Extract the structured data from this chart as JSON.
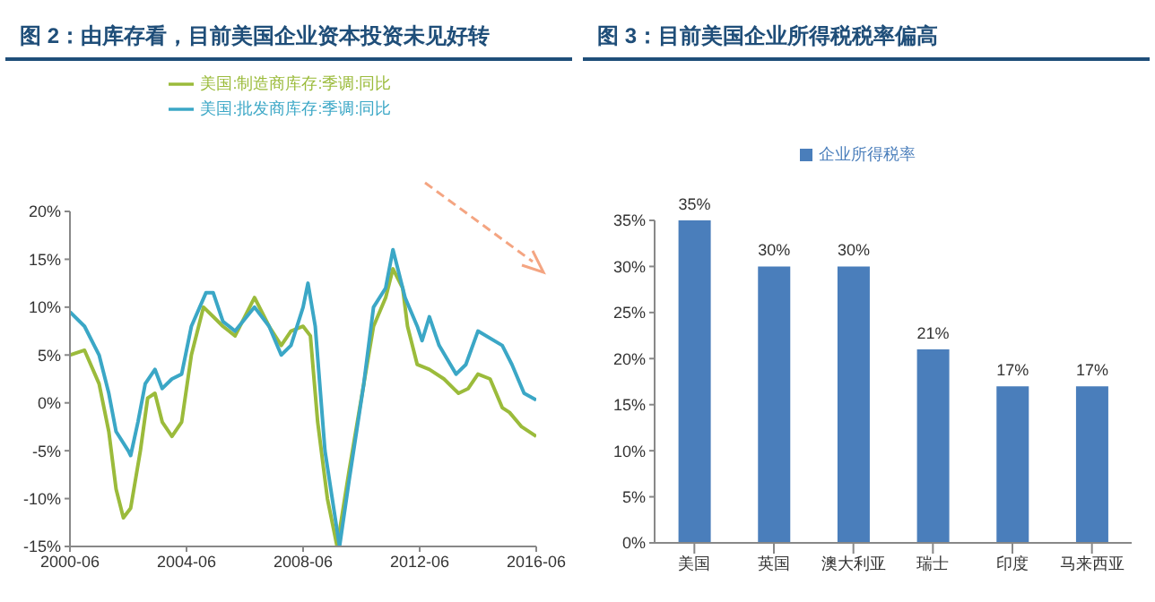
{
  "chart_data": [
    {
      "type": "line",
      "title": "图 2：由库存看，目前美国企业资本投资未见好转",
      "legend": "top",
      "marker": "none",
      "line_style": "solid",
      "grid": false,
      "xlim": [
        "2000-06",
        "2016-06"
      ],
      "xticks": [
        "2000-06",
        "2004-06",
        "2008-06",
        "2012-06",
        "2016-06"
      ],
      "ylim": [
        -15,
        20
      ],
      "yticks": [
        {
          "value": -15,
          "label": "-15%"
        },
        {
          "value": -10,
          "label": "-10%"
        },
        {
          "value": -5,
          "label": "-5%"
        },
        {
          "value": 0,
          "label": "0%"
        },
        {
          "value": 5,
          "label": "5%"
        },
        {
          "value": 10,
          "label": "10%"
        },
        {
          "value": 15,
          "label": "15%"
        },
        {
          "value": 20,
          "label": "20%"
        }
      ],
      "series": [
        {
          "name": "美国:制造商库存:季调:同比",
          "color": "#9bbb3b",
          "x": [
            "2000-06",
            "2000-12",
            "2001-06",
            "2001-10",
            "2002-01",
            "2002-04",
            "2002-07",
            "2002-11",
            "2003-02",
            "2003-05",
            "2003-08",
            "2003-12",
            "2004-04",
            "2004-08",
            "2005-01",
            "2005-05",
            "2005-09",
            "2006-02",
            "2006-10",
            "2007-04",
            "2007-09",
            "2008-01",
            "2008-06",
            "2008-09",
            "2008-12",
            "2009-04",
            "2009-08",
            "2010-01",
            "2010-07",
            "2010-11",
            "2011-04",
            "2011-07",
            "2011-11",
            "2012-01",
            "2012-05",
            "2012-10",
            "2013-04",
            "2013-10",
            "2014-02",
            "2014-06",
            "2014-11",
            "2015-04",
            "2015-07",
            "2015-12",
            "2016-06"
          ],
          "values": [
            5,
            5.5,
            2,
            -3,
            -9,
            -12,
            -11,
            -5,
            0.5,
            1,
            -2,
            -3.5,
            -2,
            5,
            10,
            9,
            8,
            7,
            11,
            8,
            6,
            7.5,
            8,
            7,
            -2,
            -10,
            -15,
            -7,
            2,
            8,
            11,
            14,
            12,
            8,
            4,
            3.5,
            2.5,
            1,
            1.5,
            3,
            2.5,
            -0.5,
            -1,
            -2.5,
            -3.5
          ]
        },
        {
          "name": "美国:批发商库存:季调:同比",
          "color": "#3ba7c6",
          "x": [
            "2000-06",
            "2000-12",
            "2001-06",
            "2001-10",
            "2002-01",
            "2002-06",
            "2002-07",
            "2002-10",
            "2003-01",
            "2003-05",
            "2003-08",
            "2003-12",
            "2004-04",
            "2004-08",
            "2005-02",
            "2005-05",
            "2005-09",
            "2006-02",
            "2006-10",
            "2007-04",
            "2007-09",
            "2008-01",
            "2008-06",
            "2008-08",
            "2008-11",
            "2009-03",
            "2009-09",
            "2010-01",
            "2010-07",
            "2010-11",
            "2011-04",
            "2011-07",
            "2011-09",
            "2011-12",
            "2012-05",
            "2012-07",
            "2012-10",
            "2013-02",
            "2013-09",
            "2014-01",
            "2014-06",
            "2015-04",
            "2015-08",
            "2016-01",
            "2016-06"
          ],
          "values": [
            9.5,
            8,
            5,
            1,
            -3,
            -5,
            -5.5,
            -2,
            2,
            3.5,
            1.5,
            2.5,
            3,
            8,
            11.5,
            11.5,
            8.5,
            7.5,
            10,
            8,
            5,
            6,
            10,
            12.5,
            8,
            -5,
            -15,
            -8,
            2,
            10,
            12,
            16,
            14,
            11,
            8,
            6.5,
            9,
            6,
            3,
            4,
            7.5,
            6,
            4,
            1,
            0.3
          ]
        }
      ]
    },
    {
      "type": "bar",
      "title": "图 3：目前美国企业所得税税率偏高",
      "legend": "top",
      "grid": false,
      "categories": [
        "美国",
        "英国",
        "澳大利亚",
        "瑞士",
        "印度",
        "马来西亚"
      ],
      "ylim": [
        0,
        35
      ],
      "yticks": [
        {
          "value": 0,
          "label": "0%"
        },
        {
          "value": 5,
          "label": "5%"
        },
        {
          "value": 10,
          "label": "10%"
        },
        {
          "value": 15,
          "label": "15%"
        },
        {
          "value": 20,
          "label": "20%"
        },
        {
          "value": 25,
          "label": "25%"
        },
        {
          "value": 30,
          "label": "30%"
        },
        {
          "value": 35,
          "label": "35%"
        }
      ],
      "series": [
        {
          "name": "企业所得税率",
          "color": "#4a7ebb",
          "values": [
            35,
            30,
            30,
            21,
            17,
            17
          ],
          "value_labels": [
            "35%",
            "30%",
            "30%",
            "21%",
            "17%",
            "17%"
          ]
        }
      ]
    }
  ]
}
